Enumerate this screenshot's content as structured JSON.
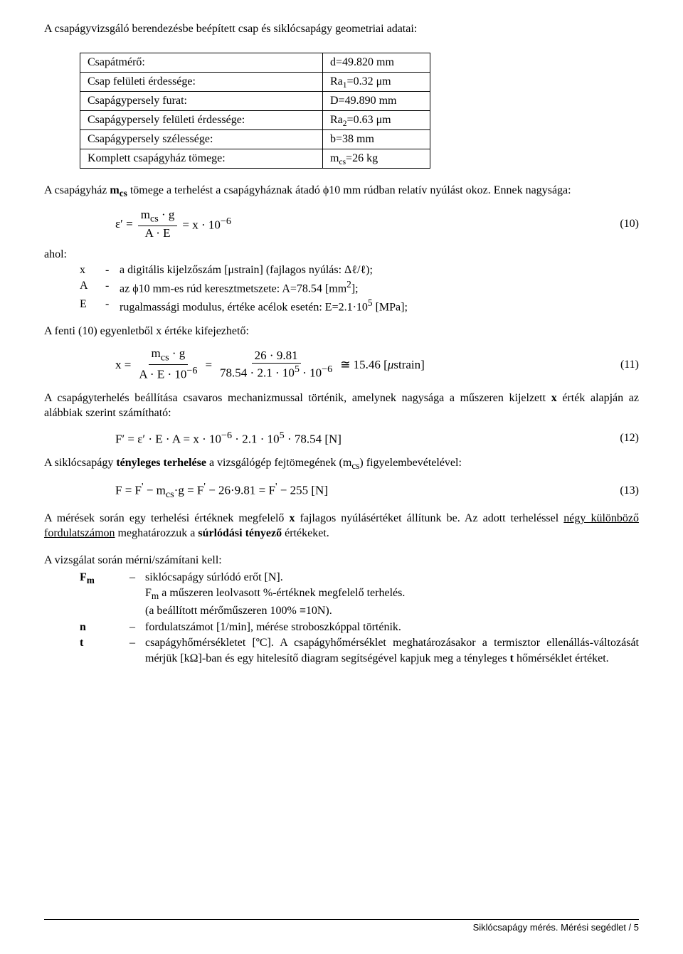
{
  "intro": "A csapágyvizsgáló berendezésbe beépített csap és siklócsapágy geometriai adatai:",
  "table": {
    "rows": [
      {
        "label": "Csapátmérő:",
        "value_html": "d=49.820 mm"
      },
      {
        "label": "Csap felületi érdessége:",
        "value_html": "Ra<sub>1</sub>=0.32 μm"
      },
      {
        "label": "Csapágypersely furat:",
        "value_html": "D=49.890 mm"
      },
      {
        "label": "Csapágypersely felületi érdessége:",
        "value_html": "Ra<sub>2</sub>=0.63 μm"
      },
      {
        "label": "Csapágypersely szélessége:",
        "value_html": "b=38 mm"
      },
      {
        "label": "Komplett csapágyház tömege:",
        "value_html": "m<sub>cs</sub>=26 kg"
      }
    ]
  },
  "p_mcs_html": "A csapágyház <b>m<sub>cs</sub></b> tömege a terhelést a csapágyháznak átadó ϕ10 mm rúdban relatív nyúlást okoz. Ennek nagysága:",
  "eq10": {
    "parts": {
      "lhs": "ε′ =",
      "num": "m<sub>cs</sub> · g",
      "den": "A · E",
      "rhs": "= x · 10<sup>−6</sup>"
    },
    "num": "(10)"
  },
  "where": {
    "ahol": "ahol:",
    "rows": [
      {
        "sym": "x",
        "desc_html": "a digitális kijelzőszám [μstrain] (fajlagos nyúlás: Δℓ/ℓ);"
      },
      {
        "sym": "A",
        "desc_html": "az ϕ10 mm-es rúd keresztmetszete: A=78.54 [mm<sup>2</sup>];"
      },
      {
        "sym": "E",
        "desc_html": "rugalmassági modulus, értéke acélok esetén: E=2.1·10<sup>5</sup> [MPa];"
      }
    ]
  },
  "p_eq11": "A fenti (10) egyenletből x értéke kifejezhető:",
  "eq11": {
    "parts": {
      "lhs": "x =",
      "num1": "m<sub>cs</sub> · g",
      "den1": "A · E · 10<sup>−6</sup>",
      "eq1": "=",
      "num2": "26 · 9.81",
      "den2": "78.54 · 2.1 · 10<sup>5</sup> · 10<sup>−6</sup>",
      "rhs": "≅ 15.46 [<i>μ</i>strain]"
    },
    "num": "(11)"
  },
  "p_setload_html": "A csapágyterhelés beállítása csavaros mechanizmussal történik, amelynek nagysága a műszeren kijelzett <b>x</b> érték alapján az alábbiak szerint számítható:",
  "eq12": {
    "text_html": "F′ = ε′ · E · A = x · 10<sup>−6</sup> · 2.1 · 10<sup>5</sup> · 78.54 [N]",
    "num": "(12)"
  },
  "p_actual_html": "A siklócsapágy <b>tényleges terhelése</b> a vizsgálógép fejtömegének (m<sub>cs</sub>) figyelembevételével:",
  "eq13": {
    "text_html": "F = F<sup>'</sup> − m<sub>cs</sub>·g = F<sup>'</sup> − 26·9.81 = F<sup>'</sup> − 255 [N]",
    "num": "(13)"
  },
  "p_meas_html": "A mérések során egy terhelési értéknek megfelelő <b>x</b> fajlagos nyúlásértéket állítunk be. Az adott terheléssel <u>négy különböző fordulatszámon</u> meghatározzuk a <b>súrlódási tényező</b> értékeket.",
  "measure": {
    "head": "A vizsgálat során mérni/számítani kell:",
    "rows": [
      {
        "sym_html": "F<sub>m</sub>",
        "desc_html": "siklócsapágy súrlódó erőt [N].<br>F<sub>m</sub> a műszeren leolvasott %-értéknek megfelelő terhelés.<br>(a beállított mérőműszeren 100% ≡10N)."
      },
      {
        "sym_html": "n",
        "desc_html": "fordulatszámot [1/min], mérése stroboszkóppal történik."
      },
      {
        "sym_html": "t",
        "desc_html": "csapágyhőmérsékletet [ºC]. A csapágyhőmérséklet meghatározásakor a termisztor ellenállás-változását mérjük [kΩ]-ban és egy hitelesítő diagram segítségével kapjuk meg a tényleges <b>t</b> hőmérséklet értéket."
      }
    ]
  },
  "footer": "Siklócsapágy mérés. Mérési segédlet  /  5"
}
